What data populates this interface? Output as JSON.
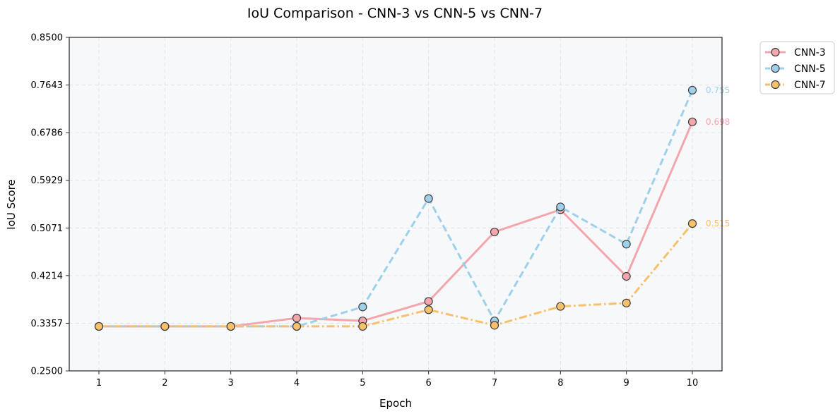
{
  "chart_data": {
    "type": "line",
    "title": "IoU Comparison - CNN-3 vs CNN-5 vs CNN-7",
    "xlabel": "Epoch",
    "ylabel": "IoU Score",
    "x": [
      1,
      2,
      3,
      4,
      5,
      6,
      7,
      8,
      9,
      10
    ],
    "xlim": [
      0.55,
      10.45
    ],
    "ylim": [
      0.25,
      0.85
    ],
    "yticks": [
      "0.2500",
      "0.3357",
      "0.4214",
      "0.5071",
      "0.5929",
      "0.6786",
      "0.7643",
      "0.8500"
    ],
    "grid": true,
    "legend_position": "outside top-right",
    "series": [
      {
        "name": "CNN-3",
        "color": "#f4a6ad",
        "dash": "solid",
        "values": [
          0.33,
          0.33,
          0.33,
          0.345,
          0.34,
          0.375,
          0.5,
          0.54,
          0.42,
          0.698
        ],
        "end_label": "0.698"
      },
      {
        "name": "CNN-5",
        "color": "#9fd0ea",
        "dash": "dashed",
        "values": [
          0.33,
          0.33,
          0.33,
          0.33,
          0.365,
          0.56,
          0.34,
          0.545,
          0.478,
          0.755
        ],
        "end_label": "0.755"
      },
      {
        "name": "CNN-7",
        "color": "#f7c06a",
        "dash": "dashdot",
        "values": [
          0.33,
          0.33,
          0.33,
          0.33,
          0.33,
          0.36,
          0.332,
          0.366,
          0.372,
          0.515
        ],
        "end_label": "0.515"
      }
    ]
  }
}
